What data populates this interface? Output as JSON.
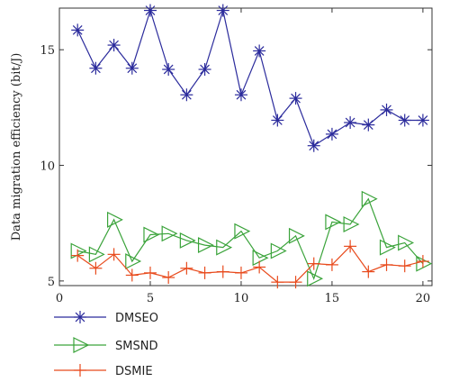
{
  "chart_data": {
    "type": "line",
    "title": "",
    "xlabel": "",
    "ylabel": "Data migration efficiency (bit/J)",
    "xlim": [
      0,
      20.5
    ],
    "ylim": [
      4.8,
      16.8
    ],
    "xticks": [
      0,
      5,
      10,
      15,
      20
    ],
    "yticks": [
      5,
      10,
      15
    ],
    "grid": false,
    "legend_position": "bottom-left, below plot",
    "x": [
      1,
      2,
      3,
      4,
      5,
      6,
      7,
      8,
      9,
      10,
      11,
      12,
      13,
      14,
      15,
      16,
      17,
      18,
      19,
      20
    ],
    "series": [
      {
        "name": "DMSEO",
        "color": "#2b2b9c",
        "marker": "asterisk",
        "values": [
          15.85,
          14.2,
          15.2,
          14.2,
          16.7,
          14.15,
          13.05,
          14.15,
          16.7,
          13.05,
          14.95,
          11.95,
          12.9,
          10.85,
          11.35,
          11.85,
          11.75,
          12.4,
          11.95,
          11.95
        ]
      },
      {
        "name": "SMSND",
        "color": "#3aa33a",
        "marker": "triangle-right",
        "values": [
          6.3,
          6.15,
          7.65,
          5.85,
          7.0,
          7.05,
          6.75,
          6.55,
          6.45,
          7.15,
          6.0,
          6.3,
          6.95,
          5.1,
          7.55,
          7.45,
          8.55,
          6.45,
          6.65,
          5.75
        ]
      },
      {
        "name": "DSMIE",
        "color": "#e84a1c",
        "marker": "plus",
        "values": [
          6.1,
          5.55,
          6.15,
          5.25,
          5.35,
          5.15,
          5.55,
          5.35,
          5.4,
          5.35,
          5.6,
          4.95,
          4.95,
          5.75,
          5.7,
          6.5,
          5.4,
          5.7,
          5.65,
          5.85
        ]
      }
    ]
  }
}
